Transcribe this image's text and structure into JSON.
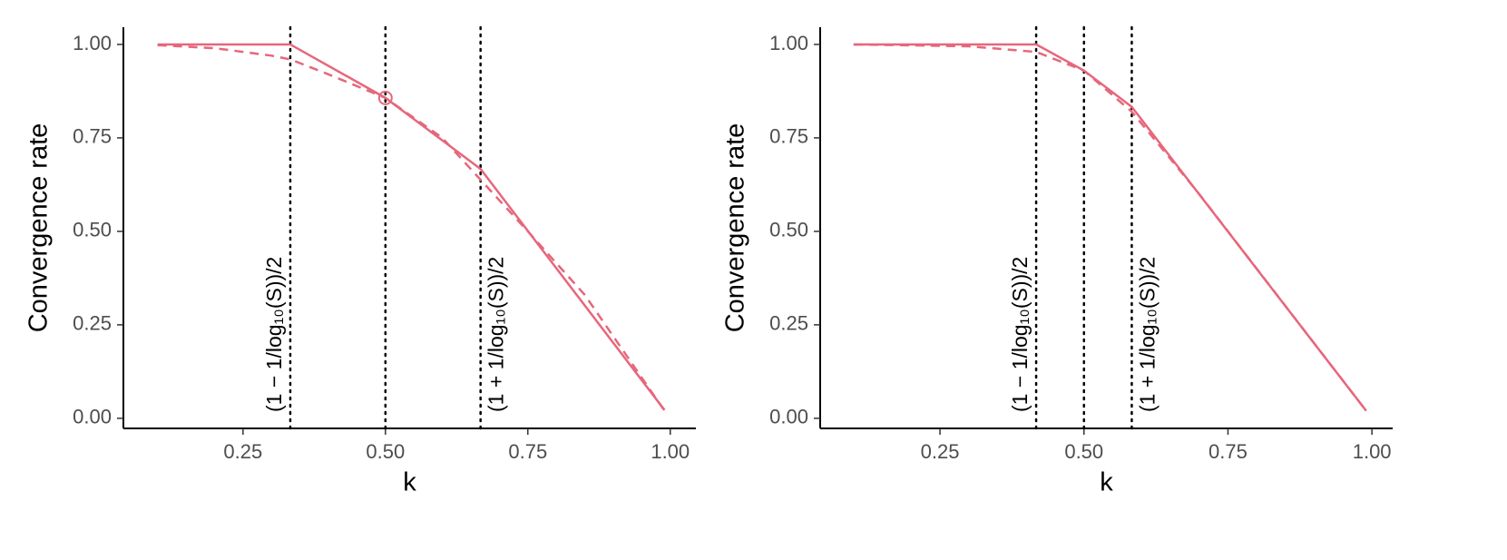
{
  "chart_data": [
    {
      "type": "line",
      "xlabel": "k",
      "ylabel": "Convergence rate",
      "xlim": [
        0.04,
        1.045
      ],
      "ylim": [
        -0.027,
        1.046
      ],
      "xticks": [
        0.25,
        {
          "value": 0.5,
          "label": "0.50"
        },
        0.75,
        {
          "value": 1,
          "label": "1.00"
        }
      ],
      "yticks": [
        {
          "value": 0,
          "label": "0.00"
        },
        0.25,
        {
          "value": 0.5,
          "label": "0.50"
        },
        0.75,
        {
          "value": 1,
          "label": "1.00"
        }
      ],
      "series": [
        {
          "color": "#e6677b",
          "linestyle": "solid",
          "x": [
            0.1,
            0.333,
            0.5,
            0.667,
            0.99
          ],
          "values": [
            1,
            1,
            0.857,
            0.667,
            0.022
          ]
        },
        {
          "color": "#e6677b",
          "linestyle": "dashed",
          "x": [
            0.1,
            0.2,
            0.3,
            0.333,
            0.4,
            0.5,
            0.6,
            0.667,
            0.75,
            0.85,
            0.99
          ],
          "values": [
            0.998,
            0.99,
            0.97,
            0.96,
            0.92,
            0.857,
            0.75,
            0.638,
            0.5,
            0.33,
            0.02
          ]
        }
      ],
      "highlight": {
        "x": 0.5,
        "y": 0.857
      },
      "vlines": [
        {
          "x": 0.333,
          "label": "(1 − 1/log₁₀(S))/2",
          "side": "left"
        },
        {
          "x": 0.5
        },
        {
          "x": 0.667,
          "label": "(1 + 1/log₁₀(S))/2",
          "side": "right"
        }
      ]
    },
    {
      "type": "line",
      "xlabel": "k",
      "ylabel": "Convergence rate",
      "xlim": [
        0.042,
        1.036
      ],
      "ylim": [
        -0.027,
        1.046
      ],
      "xticks": [
        0.25,
        {
          "value": 0.5,
          "label": "0.50"
        },
        0.75,
        {
          "value": 1,
          "label": "1.00"
        }
      ],
      "yticks": [
        {
          "value": 0,
          "label": "0.00"
        },
        0.25,
        {
          "value": 0.5,
          "label": "0.50"
        },
        0.75,
        {
          "value": 1,
          "label": "1.00"
        }
      ],
      "series": [
        {
          "color": "#e6677b",
          "linestyle": "solid",
          "x": [
            0.1,
            0.417,
            0.5,
            0.583,
            0.99
          ],
          "values": [
            1,
            1,
            0.93,
            0.833,
            0.02
          ]
        },
        {
          "color": "#e6677b",
          "linestyle": "dashed",
          "x": [
            0.1,
            0.3,
            0.417,
            0.5,
            0.583,
            0.7,
            0.99
          ],
          "values": [
            1,
            0.995,
            0.98,
            0.93,
            0.82,
            0.6,
            0.02
          ]
        }
      ],
      "vlines": [
        {
          "x": 0.417,
          "label": "(1 − 1/log₁₀(S))/2",
          "side": "left"
        },
        {
          "x": 0.5
        },
        {
          "x": 0.583,
          "label": "(1 + 1/log₁₀(S))/2",
          "side": "right"
        }
      ]
    }
  ]
}
